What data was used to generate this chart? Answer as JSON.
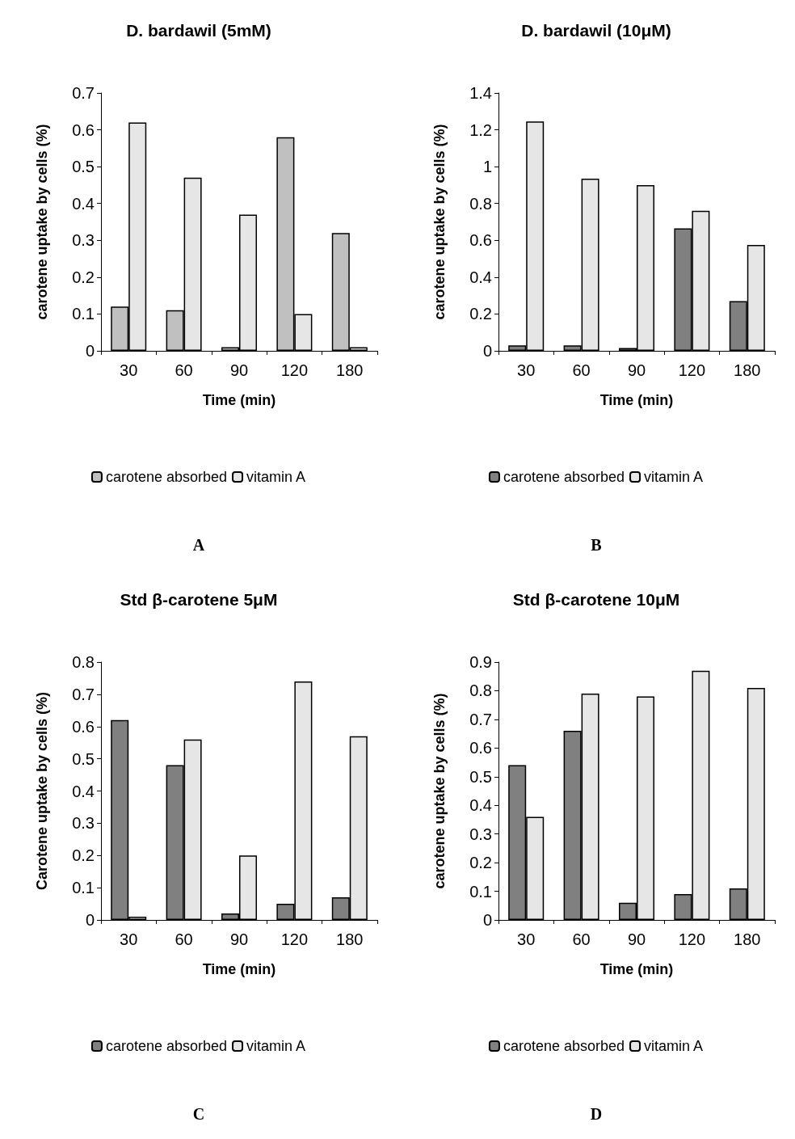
{
  "chart_data": [
    {
      "type": "bar",
      "title": "D. bardawil (5mM)",
      "xlabel": "Time (min)",
      "ylabel": "carotene uptake by cells (%)",
      "categories": [
        "30",
        "60",
        "90",
        "120",
        "180"
      ],
      "series": [
        {
          "name": "carotene absorbed",
          "color": "#c0c0c0",
          "values": [
            0.12,
            0.11,
            0.01,
            0.58,
            0.32
          ]
        },
        {
          "name": "vitamin A",
          "color": "#e6e6e6",
          "values": [
            0.62,
            0.47,
            0.37,
            0.1,
            0.01
          ]
        }
      ],
      "ylim": [
        0,
        0.7
      ],
      "yticks": [
        0,
        0.1,
        0.2,
        0.3,
        0.4,
        0.5,
        0.6,
        0.7
      ],
      "legend": "bottom",
      "annotations": [
        "A"
      ]
    },
    {
      "type": "bar",
      "title": "D. bardawil (10μM)",
      "xlabel": "Time (min)",
      "ylabel": "carotene uptake by cells (%)",
      "categories": [
        "30",
        "60",
        "90",
        "120",
        "180"
      ],
      "series": [
        {
          "name": "carotene absorbed",
          "color": "#808080",
          "values": [
            0.03,
            0.03,
            0.015,
            0.665,
            0.27
          ]
        },
        {
          "name": "vitamin A",
          "color": "#e6e6e6",
          "values": [
            1.245,
            0.935,
            0.9,
            0.76,
            0.575
          ]
        }
      ],
      "ylim": [
        0,
        1.4
      ],
      "yticks": [
        0,
        0.2,
        0.4,
        0.6,
        0.8,
        1,
        1.2,
        1.4
      ],
      "legend": "bottom",
      "annotations": [
        "B"
      ]
    },
    {
      "type": "bar",
      "title": "Std β-carotene 5μM",
      "xlabel": "Time (min)",
      "ylabel": "Carotene uptake by cells (%)",
      "categories": [
        "30",
        "60",
        "90",
        "120",
        "180"
      ],
      "series": [
        {
          "name": "carotene absorbed",
          "color": "#808080",
          "values": [
            0.62,
            0.48,
            0.02,
            0.05,
            0.07
          ]
        },
        {
          "name": "vitamin A",
          "color": "#e6e6e6",
          "values": [
            0.01,
            0.56,
            0.2,
            0.74,
            0.57
          ]
        }
      ],
      "ylim": [
        0,
        0.8
      ],
      "yticks": [
        0,
        0.1,
        0.2,
        0.3,
        0.4,
        0.5,
        0.6,
        0.7,
        0.8
      ],
      "legend": "bottom",
      "annotations": [
        "C"
      ]
    },
    {
      "type": "bar",
      "title": "Std β-carotene 10μM",
      "xlabel": "Time (min)",
      "ylabel": "carotene uptake by cells (%)",
      "categories": [
        "30",
        "60",
        "90",
        "120",
        "180"
      ],
      "series": [
        {
          "name": "carotene absorbed",
          "color": "#808080",
          "values": [
            0.54,
            0.66,
            0.06,
            0.09,
            0.11
          ]
        },
        {
          "name": "vitamin A",
          "color": "#e6e6e6",
          "values": [
            0.36,
            0.79,
            0.78,
            0.87,
            0.81
          ]
        }
      ],
      "ylim": [
        0,
        0.9
      ],
      "yticks": [
        0,
        0.1,
        0.2,
        0.3,
        0.4,
        0.5,
        0.6,
        0.7,
        0.8,
        0.9
      ],
      "legend": "bottom",
      "annotations": [
        "D"
      ]
    }
  ]
}
